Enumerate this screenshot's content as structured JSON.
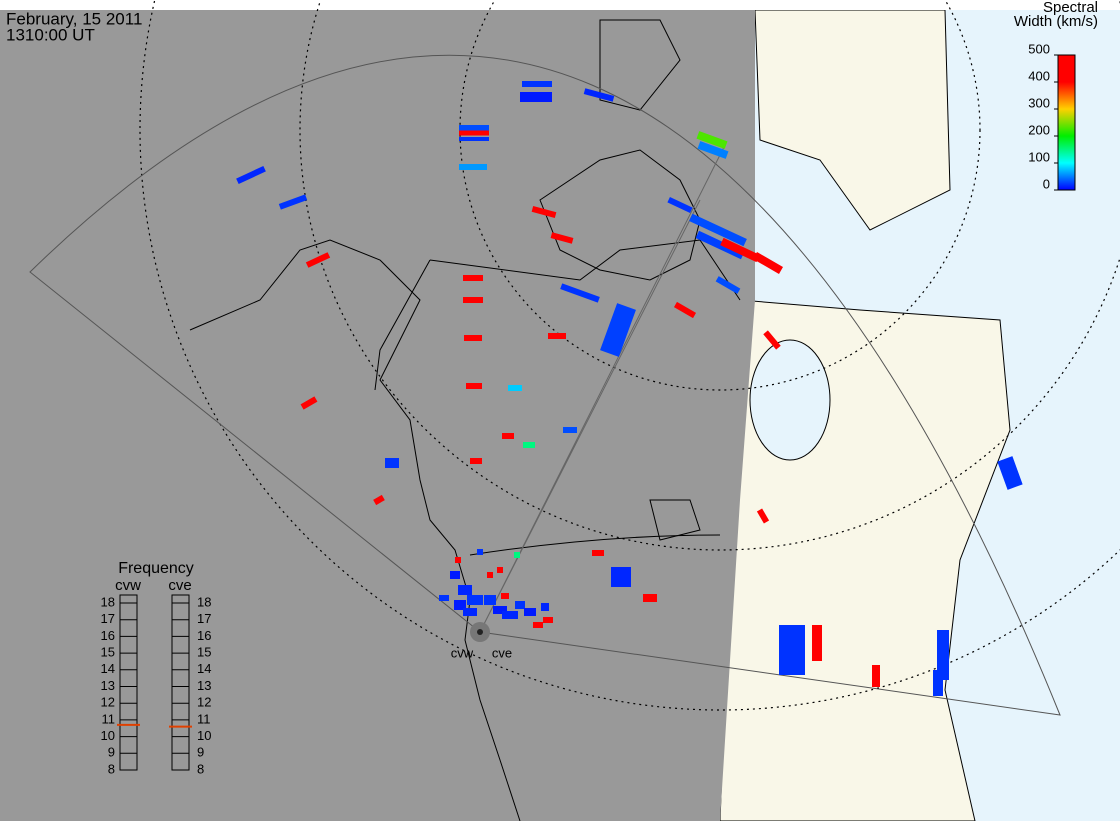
{
  "header": {
    "date": "February, 15 2011",
    "time": "1310:00 UT"
  },
  "colorbar": {
    "title_line1": "Spectral",
    "title_line2": "Width (km/s)",
    "lim": [
      0,
      500
    ],
    "ticks": [
      0,
      100,
      200,
      300,
      400,
      500
    ],
    "colors": [
      "#0000ff",
      "#00ffff",
      "#00ee00",
      "#ffd000",
      "#ff0000",
      "#ff0000"
    ]
  },
  "frequency": {
    "title": "Frequency",
    "lim": [
      8,
      18
    ],
    "ticks": [
      8,
      9,
      10,
      11,
      12,
      13,
      14,
      15,
      16,
      17,
      18
    ],
    "radars": [
      {
        "name": "cvw",
        "value": 10.7
      },
      {
        "name": "cve",
        "value": 10.6
      }
    ]
  },
  "radar_labels": [
    "cvw",
    "cve"
  ],
  "echoes": [
    20,
    10,
    15,
    30,
    480,
    20,
    60,
    15,
    20,
    470,
    480,
    470,
    230,
    50,
    20,
    30,
    25,
    470,
    480,
    30,
    20,
    25,
    470,
    480,
    480,
    480,
    470,
    470,
    480,
    80,
    470,
    480,
    150,
    30,
    20,
    480,
    470,
    480,
    470,
    15,
    470,
    20,
    20,
    470,
    20,
    470,
    20,
    10,
    15,
    20,
    10,
    15,
    20,
    10,
    15,
    20,
    10,
    15,
    470,
    480,
    470,
    470,
    20,
    470,
    150,
    20,
    470
  ]
}
